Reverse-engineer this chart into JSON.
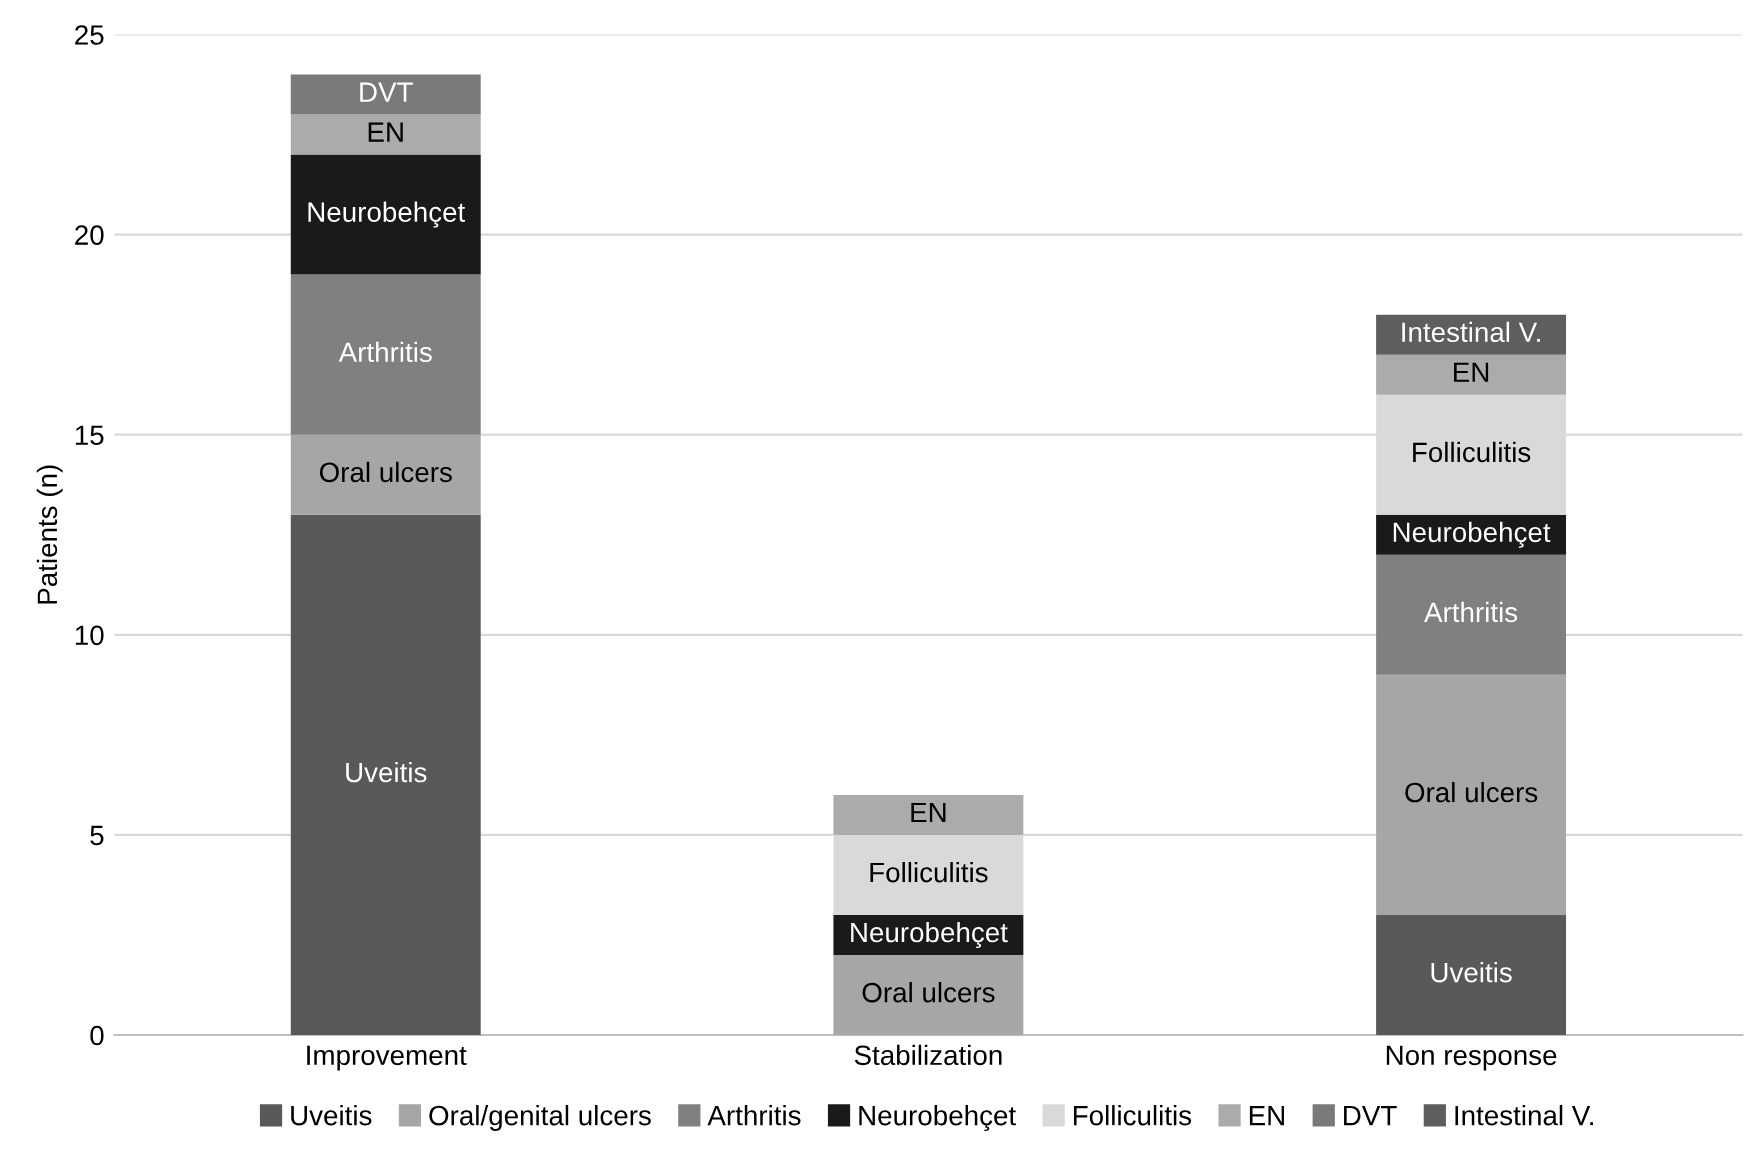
{
  "chart_data": {
    "type": "bar",
    "stacked": true,
    "ylabel": "Patients (n)",
    "categories": [
      "Improvement",
      "Stabilization",
      "Non response"
    ],
    "ylim": [
      0,
      25
    ],
    "yticks": [
      0,
      5,
      10,
      15,
      20,
      25
    ],
    "grid": "y",
    "legend": "bottom",
    "series": [
      {
        "name": "Uveitis",
        "color": "#595959",
        "values": [
          13,
          0,
          3
        ],
        "value_labels": [
          "Uveitis",
          null,
          "Uveitis"
        ]
      },
      {
        "name": "Oral/genital ulcers",
        "color": "#a6a6a6",
        "values": [
          2,
          2,
          6
        ],
        "value_labels": [
          "Oral ulcers",
          "Oral ulcers",
          "Oral ulcers"
        ]
      },
      {
        "name": "Arthritis",
        "color": "#808080",
        "values": [
          4,
          0,
          3
        ],
        "value_labels": [
          "Arthritis",
          null,
          "Arthritis"
        ]
      },
      {
        "name": "Neurobehçet",
        "color": "#1a1a1a",
        "values": [
          3,
          1,
          1
        ],
        "value_labels": [
          "Neurobehçet",
          "Neurobehçet",
          "Neurobehçet"
        ]
      },
      {
        "name": "Folliculitis",
        "color": "#d9d9d9",
        "values": [
          0,
          2,
          3
        ],
        "value_labels": [
          null,
          "Folliculitis",
          "Folliculitis"
        ]
      },
      {
        "name": "EN",
        "color": "#ababab",
        "values": [
          1,
          1,
          1
        ],
        "value_labels": [
          "EN",
          "EN",
          "EN"
        ]
      },
      {
        "name": "DVT",
        "color": "#7a7a7a",
        "values": [
          1,
          0,
          0
        ],
        "value_labels": [
          "DVT",
          null,
          null
        ]
      },
      {
        "name": "Intestinal V.",
        "color": "#5e5e5e",
        "values": [
          0,
          0,
          1
        ],
        "value_labels": [
          null,
          null,
          "Intestinal V."
        ]
      }
    ]
  }
}
